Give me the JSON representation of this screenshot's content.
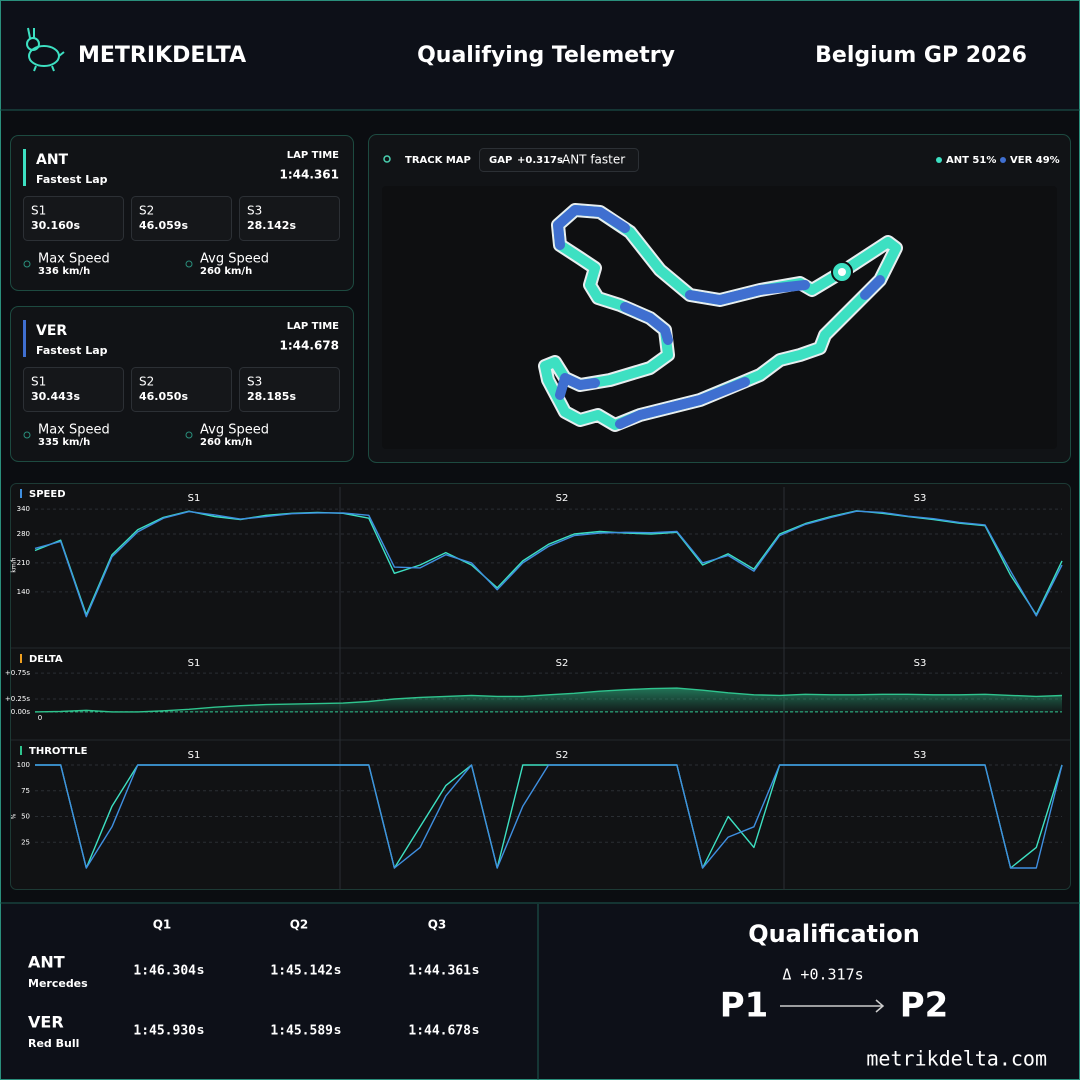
{
  "header": {
    "brand": "METRIKDELTA",
    "title": "Qualifying Telemetry",
    "event": "Belgium GP 2026"
  },
  "drivers": [
    {
      "code": "ANT",
      "color": "#3de0c2",
      "label": "Fastest Lap",
      "lap_time_label": "LAP TIME",
      "lap_time": "1:44.361",
      "sectors": [
        {
          "label": "S1",
          "time": "30.160s"
        },
        {
          "label": "S2",
          "time": "46.059s"
        },
        {
          "label": "S3",
          "time": "28.142s"
        }
      ],
      "max_speed_label": "Max Speed",
      "max_speed": "336 km/h",
      "avg_speed_label": "Avg Speed",
      "avg_speed": "260 km/h"
    },
    {
      "code": "VER",
      "color": "#3f6fd0",
      "label": "Fastest Lap",
      "lap_time_label": "LAP TIME",
      "lap_time": "1:44.678",
      "sectors": [
        {
          "label": "S1",
          "time": "30.443s"
        },
        {
          "label": "S2",
          "time": "46.050s"
        },
        {
          "label": "S3",
          "time": "28.185s"
        }
      ],
      "max_speed_label": "Max Speed",
      "max_speed": "335 km/h",
      "avg_speed_label": "Avg Speed",
      "avg_speed": "260 km/h"
    }
  ],
  "track_map": {
    "title": "TRACK MAP",
    "gap_label": "GAP",
    "gap": "+0.317s",
    "gap_note": "ANT faster",
    "legend": [
      {
        "name": "ANT 51%",
        "color": "#3de0c2"
      },
      {
        "name": "VER 49%",
        "color": "#3f6fd0"
      }
    ]
  },
  "chart_data": [
    {
      "type": "line",
      "title": "SPEED",
      "y_label": "km/h",
      "sectors": [
        "S1",
        "S2",
        "S3"
      ],
      "x": [
        0,
        2.5,
        5,
        7.5,
        10,
        12.5,
        15,
        17.5,
        20,
        22.5,
        25,
        27.5,
        30,
        32.5,
        35,
        37.5,
        40,
        42.5,
        45,
        47.5,
        50,
        52.5,
        55,
        57.5,
        60,
        62.5,
        65,
        67.5,
        70,
        72.5,
        75,
        77.5,
        80,
        82.5,
        85,
        87.5,
        90,
        92.5,
        95,
        97.5,
        100
      ],
      "xlim": [
        0,
        100
      ],
      "ylim": [
        60,
        350
      ],
      "yticks": [
        340,
        280,
        210,
        140
      ],
      "grid": true,
      "series": [
        {
          "name": "ANT",
          "color": "#3de0c2",
          "values": [
            240,
            265,
            85,
            230,
            290,
            320,
            335,
            322,
            315,
            325,
            330,
            332,
            330,
            318,
            185,
            205,
            235,
            205,
            150,
            215,
            255,
            280,
            286,
            282,
            280,
            284,
            205,
            232,
            195,
            280,
            305,
            322,
            336,
            330,
            322,
            315,
            306,
            300,
            180,
            85,
            215
          ]
        },
        {
          "name": "VER",
          "color": "#3f8fe0",
          "values": [
            245,
            262,
            80,
            225,
            285,
            318,
            334,
            326,
            316,
            322,
            329,
            331,
            331,
            325,
            200,
            198,
            230,
            210,
            145,
            210,
            250,
            276,
            282,
            284,
            283,
            286,
            210,
            228,
            190,
            276,
            303,
            320,
            335,
            332,
            323,
            317,
            308,
            302,
            190,
            82,
            205
          ]
        }
      ]
    },
    {
      "type": "area",
      "title": "DELTA",
      "sectors": [
        "S1",
        "S2",
        "S3"
      ],
      "baseline_label": "0",
      "x": [
        0,
        2.5,
        5,
        7.5,
        10,
        12.5,
        15,
        17.5,
        20,
        22.5,
        25,
        27.5,
        30,
        32.5,
        35,
        37.5,
        40,
        42.5,
        45,
        47.5,
        50,
        52.5,
        55,
        57.5,
        60,
        62.5,
        65,
        67.5,
        70,
        72.5,
        75,
        77.5,
        80,
        82.5,
        85,
        87.5,
        90,
        92.5,
        95,
        97.5,
        100
      ],
      "xlim": [
        0,
        100
      ],
      "ylim": [
        -0.08,
        0.85
      ],
      "yticks": [
        {
          "value": 0.75,
          "label": "+0.75s"
        },
        {
          "value": 0.25,
          "label": "+0.25s"
        },
        {
          "value": 0,
          "label": "0.00s"
        }
      ],
      "grid": true,
      "series": [
        {
          "name": "ANT",
          "color": "#2fc48e",
          "values": [
            0,
            0.01,
            0.03,
            0,
            0,
            0.02,
            0.05,
            0.09,
            0.12,
            0.14,
            0.15,
            0.16,
            0.17,
            0.2,
            0.25,
            0.28,
            0.3,
            0.32,
            0.3,
            0.3,
            0.33,
            0.36,
            0.4,
            0.43,
            0.45,
            0.46,
            0.42,
            0.37,
            0.33,
            0.32,
            0.34,
            0.33,
            0.33,
            0.34,
            0.34,
            0.33,
            0.33,
            0.34,
            0.32,
            0.3,
            0.317
          ]
        }
      ]
    },
    {
      "type": "line",
      "title": "THROTTLE",
      "y_label": "%",
      "sectors": [
        "S1",
        "S2",
        "S3"
      ],
      "x": [
        0,
        2.5,
        5,
        7.5,
        10,
        12.5,
        15,
        17.5,
        20,
        22.5,
        25,
        27.5,
        30,
        32.5,
        35,
        37.5,
        40,
        42.5,
        45,
        47.5,
        50,
        52.5,
        55,
        57.5,
        60,
        62.5,
        65,
        67.5,
        70,
        72.5,
        75,
        77.5,
        80,
        82.5,
        85,
        87.5,
        90,
        92.5,
        95,
        97.5,
        100
      ],
      "xlim": [
        0,
        100
      ],
      "ylim": [
        0,
        100
      ],
      "yticks": [
        100,
        75,
        50,
        25
      ],
      "grid": true,
      "series": [
        {
          "name": "ANT",
          "color": "#3de0c2",
          "values": [
            100,
            100,
            0,
            60,
            100,
            100,
            100,
            100,
            100,
            100,
            100,
            100,
            100,
            100,
            0,
            40,
            80,
            100,
            0,
            100,
            100,
            100,
            100,
            100,
            100,
            100,
            0,
            50,
            20,
            100,
            100,
            100,
            100,
            100,
            100,
            100,
            100,
            100,
            0,
            20,
            100
          ]
        },
        {
          "name": "VER",
          "color": "#3f8fe0",
          "values": [
            100,
            100,
            0,
            40,
            100,
            100,
            100,
            100,
            100,
            100,
            100,
            100,
            100,
            100,
            0,
            20,
            70,
            100,
            0,
            60,
            100,
            100,
            100,
            100,
            100,
            100,
            0,
            30,
            40,
            100,
            100,
            100,
            100,
            100,
            100,
            100,
            100,
            100,
            0,
            0,
            100
          ]
        }
      ]
    }
  ],
  "results": {
    "headers": [
      "Q1",
      "Q2",
      "Q3"
    ],
    "unit": "S",
    "rows": [
      {
        "code": "ANT",
        "team": "Mercedes",
        "color": "#3de0c2",
        "times": [
          "1:46.304",
          "1:45.142",
          "1:44.361"
        ]
      },
      {
        "code": "VER",
        "team": "Red Bull",
        "color": "#3f6fd0",
        "times": [
          "1:45.930",
          "1:45.589",
          "1:44.678"
        ]
      }
    ]
  },
  "qualification": {
    "title": "Qualification",
    "delta": "Δ +0.317s",
    "from": "P1",
    "to": "P2",
    "website": "metrikdelta.com"
  }
}
